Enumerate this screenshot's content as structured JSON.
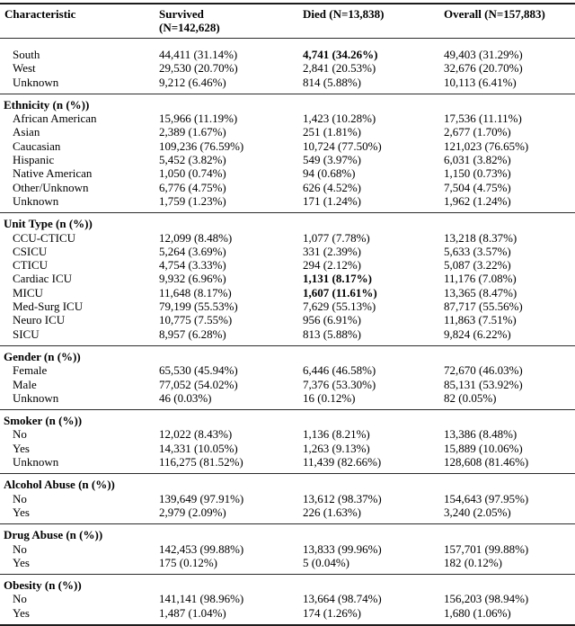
{
  "table": {
    "header": {
      "characteristic": "Characteristic",
      "survived_line1": "Survived",
      "survived_line2": "(N=142,628)",
      "died": "Died (N=13,838)",
      "overall": "Overall (N=157,883)"
    },
    "sections": [
      {
        "title": "",
        "rows": [
          {
            "label": "South",
            "survived": "44,411 (31.14%)",
            "died": "4,741 (34.26%)",
            "died_bold": true,
            "overall": "49,403 (31.29%)"
          },
          {
            "label": "West",
            "survived": "29,530 (20.70%)",
            "died": "2,841 (20.53%)",
            "died_bold": false,
            "overall": "32,676 (20.70%)"
          },
          {
            "label": "Unknown",
            "survived": "9,212 (6.46%)",
            "died": "814 (5.88%)",
            "died_bold": false,
            "overall": "10,113 (6.41%)"
          }
        ]
      },
      {
        "title": "Ethnicity (n (%))",
        "rows": [
          {
            "label": "African American",
            "survived": "15,966 (11.19%)",
            "died": "1,423 (10.28%)",
            "died_bold": false,
            "overall": "17,536 (11.11%)"
          },
          {
            "label": "Asian",
            "survived": "2,389 (1.67%)",
            "died": "251 (1.81%)",
            "died_bold": false,
            "overall": "2,677 (1.70%)"
          },
          {
            "label": "Caucasian",
            "survived": "109,236 (76.59%)",
            "died": "10,724 (77.50%)",
            "died_bold": false,
            "overall": "121,023 (76.65%)"
          },
          {
            "label": "Hispanic",
            "survived": "5,452 (3.82%)",
            "died": "549 (3.97%)",
            "died_bold": false,
            "overall": "6,031 (3.82%)"
          },
          {
            "label": "Native American",
            "survived": "1,050 (0.74%)",
            "died": "94 (0.68%)",
            "died_bold": false,
            "overall": "1,150 (0.73%)"
          },
          {
            "label": "Other/Unknown",
            "survived": "6,776 (4.75%)",
            "died": "626 (4.52%)",
            "died_bold": false,
            "overall": "7,504 (4.75%)"
          },
          {
            "label": "Unknown",
            "survived": "1,759 (1.23%)",
            "died": "171 (1.24%)",
            "died_bold": false,
            "overall": "1,962 (1.24%)"
          }
        ]
      },
      {
        "title": "Unit Type (n (%))",
        "rows": [
          {
            "label": "CCU-CTICU",
            "survived": "12,099 (8.48%)",
            "died": "1,077 (7.78%)",
            "died_bold": false,
            "overall": "13,218 (8.37%)"
          },
          {
            "label": "CSICU",
            "survived": "5,264 (3.69%)",
            "died": "331 (2.39%)",
            "died_bold": false,
            "overall": "5,633 (3.57%)"
          },
          {
            "label": "CTICU",
            "survived": "4,754 (3.33%)",
            "died": "294 (2.12%)",
            "died_bold": false,
            "overall": "5,087 (3.22%)"
          },
          {
            "label": "Cardiac ICU",
            "survived": "9,932 (6.96%)",
            "died": "1,131 (8.17%)",
            "died_bold": true,
            "overall": "11,176 (7.08%)"
          },
          {
            "label": "MICU",
            "survived": "11,648 (8.17%)",
            "died": "1,607 (11.61%)",
            "died_bold": true,
            "overall": "13,365 (8.47%)"
          },
          {
            "label": "Med-Surg ICU",
            "survived": "79,199 (55.53%)",
            "died": "7,629 (55.13%)",
            "died_bold": false,
            "overall": "87,717 (55.56%)"
          },
          {
            "label": "Neuro ICU",
            "survived": "10,775 (7.55%)",
            "died": "956 (6.91%)",
            "died_bold": false,
            "overall": "11,863 (7.51%)"
          },
          {
            "label": "SICU",
            "survived": "8,957 (6.28%)",
            "died": "813 (5.88%)",
            "died_bold": false,
            "overall": "9,824 (6.22%)"
          }
        ]
      },
      {
        "title": "Gender (n (%))",
        "rows": [
          {
            "label": "Female",
            "survived": "65,530 (45.94%)",
            "died": "6,446 (46.58%)",
            "died_bold": false,
            "overall": "72,670 (46.03%)"
          },
          {
            "label": "Male",
            "survived": "77,052 (54.02%)",
            "died": "7,376 (53.30%)",
            "died_bold": false,
            "overall": "85,131 (53.92%)"
          },
          {
            "label": "Unknown",
            "survived": "46 (0.03%)",
            "died": "16 (0.12%)",
            "died_bold": false,
            "overall": "82 (0.05%)"
          }
        ]
      },
      {
        "title": "Smoker (n (%))",
        "rows": [
          {
            "label": "No",
            "survived": "12,022 (8.43%)",
            "died": "1,136 (8.21%)",
            "died_bold": false,
            "overall": "13,386 (8.48%)"
          },
          {
            "label": "Yes",
            "survived": "14,331 (10.05%)",
            "died": "1,263 (9.13%)",
            "died_bold": false,
            "overall": "15,889 (10.06%)"
          },
          {
            "label": "Unknown",
            "survived": "116,275 (81.52%)",
            "died": "11,439 (82.66%)",
            "died_bold": false,
            "overall": "128,608 (81.46%)"
          }
        ]
      },
      {
        "title": "Alcohol Abuse (n (%))",
        "rows": [
          {
            "label": "No",
            "survived": "139,649 (97.91%)",
            "died": "13,612 (98.37%)",
            "died_bold": false,
            "overall": "154,643 (97.95%)"
          },
          {
            "label": "Yes",
            "survived": "2,979 (2.09%)",
            "died": "226 (1.63%)",
            "died_bold": false,
            "overall": "3,240 (2.05%)"
          }
        ]
      },
      {
        "title": "Drug Abuse (n (%))",
        "rows": [
          {
            "label": "No",
            "survived": "142,453 (99.88%)",
            "died": "13,833 (99.96%)",
            "died_bold": false,
            "overall": "157,701 (99.88%)"
          },
          {
            "label": "Yes",
            "survived": "175 (0.12%)",
            "died": "5 (0.04%)",
            "died_bold": false,
            "overall": "182 (0.12%)"
          }
        ]
      },
      {
        "title": "Obesity (n (%))",
        "rows": [
          {
            "label": "No",
            "survived": "141,141 (98.96%)",
            "died": "13,664 (98.74%)",
            "died_bold": false,
            "overall": "156,203 (98.94%)"
          },
          {
            "label": "Yes",
            "survived": "1,487 (1.04%)",
            "died": "174 (1.26%)",
            "died_bold": false,
            "overall": "1,680 (1.06%)"
          }
        ]
      }
    ]
  }
}
